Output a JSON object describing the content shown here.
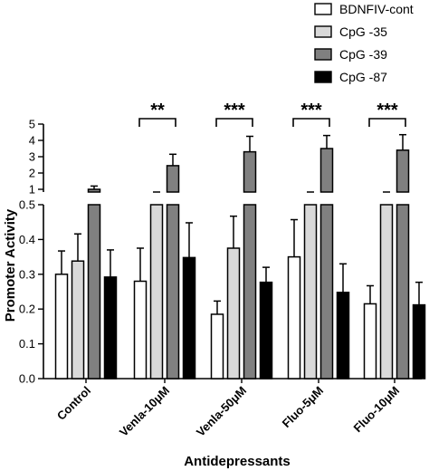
{
  "chart_data": {
    "type": "bar",
    "ylabel": "Promoter Activity",
    "xlabel": "Antidepressants",
    "categories": [
      "Control",
      "Venla-10μM",
      "Venla-50μM",
      "Fluo-5μM",
      "Fluo-10μM"
    ],
    "axis_break": {
      "lower_range": [
        0,
        0.5
      ],
      "upper_range": [
        0.5,
        5
      ],
      "lower_ticks": [
        0.0,
        0.1,
        0.2,
        0.3,
        0.4,
        0.5
      ],
      "lower_tick_labels": [
        "0.0",
        "0.1",
        "0.2",
        "0.3",
        "0.4",
        "0.5"
      ],
      "upper_ticks": [
        1,
        2,
        3,
        4,
        5
      ],
      "upper_tick_labels": [
        "1",
        "2",
        "3",
        "4",
        "5"
      ]
    },
    "series": [
      {
        "name": "BDNFIV-cont",
        "color": "#ffffff",
        "values": [
          0.3,
          0.28,
          0.185,
          0.35,
          0.215
        ],
        "errors": [
          0.067,
          0.095,
          0.038,
          0.107,
          0.052
        ]
      },
      {
        "name": "CpG -35",
        "color": "#d9d9d9",
        "values": [
          0.338,
          0.6,
          0.375,
          0.6,
          0.6
        ],
        "errors": [
          0.078,
          0.05,
          0.092,
          0.1,
          0.1
        ]
      },
      {
        "name": "CpG -39",
        "color": "#808080",
        "values": [
          1.0,
          2.45,
          3.3,
          3.5,
          3.4
        ],
        "errors": [
          0.2,
          0.7,
          0.95,
          0.8,
          0.95
        ]
      },
      {
        "name": "CpG -87",
        "color": "#000000",
        "values": [
          0.292,
          0.348,
          0.277,
          0.248,
          0.212
        ],
        "errors": [
          0.078,
          0.1,
          0.043,
          0.082,
          0.065
        ]
      }
    ],
    "significance": [
      {
        "category": "Venla-10μM",
        "label": "**"
      },
      {
        "category": "Venla-50μM",
        "label": "***"
      },
      {
        "category": "Fluo-5μM",
        "label": "***"
      },
      {
        "category": "Fluo-10μM",
        "label": "***"
      }
    ],
    "legend_position": "top-right",
    "grid": false
  }
}
